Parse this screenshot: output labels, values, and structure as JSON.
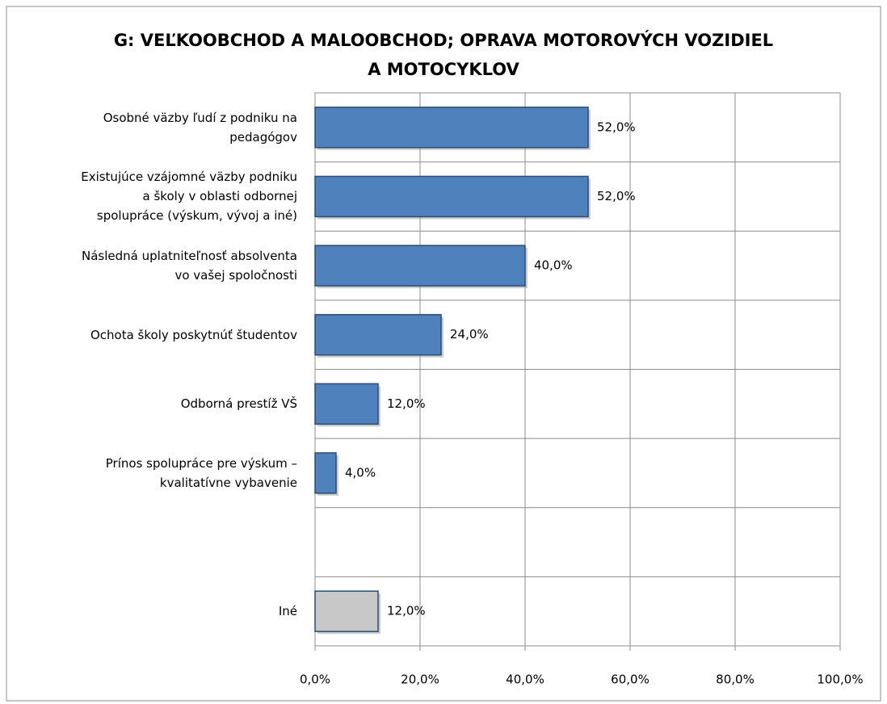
{
  "chart_data": {
    "type": "hbar",
    "title": "G: VEĽKOOBCHOD A MALOOBCHOD; OPRAVA MOTOROVÝCH VOZIDIEL\nA MOTOCYKLOV",
    "categories": [
      "Osobné väzby ľudí z podniku na\npedagógov",
      "Existujúce vzájomné väzby podniku\na školy v oblasti odbornej\nspolupráce (výskum, vývoj a iné)",
      "Následná uplatniteľnosť absolventa\nvo vašej spoločnosti",
      "Ochota školy poskytnúť  študentov",
      "Odborná prestíž VŠ",
      "Prínos spolupráce pre výskum –\nkvalitatívne vybavenie",
      null,
      "Iné"
    ],
    "values": [
      52,
      52,
      40,
      24,
      12,
      4,
      null,
      12
    ],
    "value_labels": [
      "52,0%",
      "52,0%",
      "40,0%",
      "24,0%",
      "12,0%",
      "4,0%",
      null,
      "12,0%"
    ],
    "colors": [
      "#4f81bd",
      "#4f81bd",
      "#4f81bd",
      "#4f81bd",
      "#4f81bd",
      "#4f81bd",
      null,
      "#c8c8c8"
    ],
    "xlim": [
      0,
      100
    ],
    "xticks": [
      {
        "value": 0,
        "label": "0,0%"
      },
      {
        "value": 20,
        "label": "20,0%"
      },
      {
        "value": 40,
        "label": "40,0%"
      },
      {
        "value": 60,
        "label": "60,0%"
      },
      {
        "value": 80,
        "label": "80,0%"
      },
      {
        "value": 100,
        "label": "100,0%"
      }
    ],
    "grid": true
  }
}
